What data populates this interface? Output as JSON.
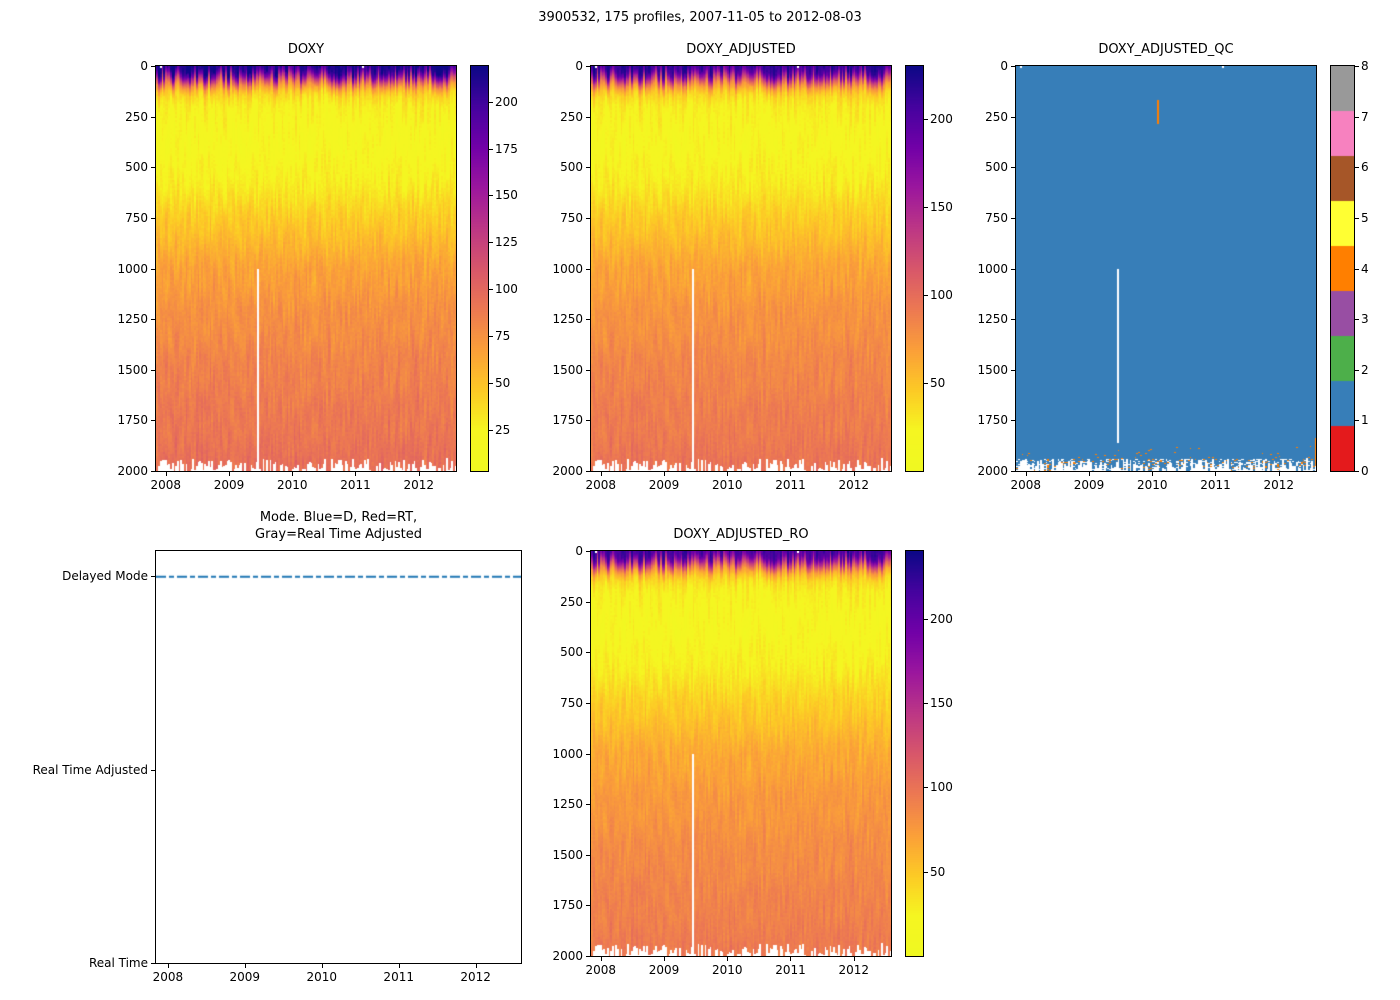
{
  "figure": {
    "title": "3900532, 175 profiles, 2007-11-05 to 2012-08-03",
    "float_id": "3900532",
    "n_profiles": 175,
    "date_start": "2007-11-05",
    "date_end": "2012-08-03",
    "background": "#ffffff",
    "text_color": "#000000"
  },
  "axes": {
    "x_tick_labels": [
      "2008",
      "2009",
      "2010",
      "2011",
      "2012"
    ],
    "x_tick_values": [
      2008,
      2009,
      2010,
      2011,
      2012
    ],
    "x_range": [
      2007.846,
      2012.589
    ],
    "depth_tick_labels": [
      "0",
      "250",
      "500",
      "750",
      "1000",
      "1250",
      "1500",
      "1750",
      "2000"
    ],
    "depth_tick_values": [
      0,
      250,
      500,
      750,
      1000,
      1250,
      1500,
      1750,
      2000
    ],
    "depth_range": [
      0,
      2000
    ]
  },
  "colormap": {
    "name": "plasma-reversed (high values dark navy, low values yellow)",
    "stops": [
      [
        13,
        8,
        135
      ],
      [
        70,
        3,
        159
      ],
      [
        114,
        1,
        168
      ],
      [
        156,
        23,
        158
      ],
      [
        189,
        55,
        134
      ],
      [
        216,
        87,
        107
      ],
      [
        237,
        121,
        83
      ],
      [
        251,
        159,
        58
      ],
      [
        253,
        202,
        38
      ],
      [
        246,
        246,
        33
      ],
      [
        240,
        249,
        33
      ]
    ]
  },
  "chart_data": [
    {
      "type": "heatmap",
      "title": "DOXY",
      "x_axis": "time (years)",
      "y_axis": "pressure (dbar), 0 at top to 2000 at bottom",
      "vmin": 3,
      "vmax": 219,
      "colorbar_ticks": [
        25,
        50,
        75,
        100,
        125,
        150,
        175,
        200
      ],
      "depth_profile_points": [
        [
          0,
          216
        ],
        [
          25,
          207
        ],
        [
          50,
          168
        ],
        [
          75,
          118
        ],
        [
          100,
          74
        ],
        [
          140,
          42
        ],
        [
          200,
          27
        ],
        [
          300,
          21
        ],
        [
          420,
          20
        ],
        [
          550,
          26
        ],
        [
          700,
          40
        ],
        [
          850,
          54
        ],
        [
          1000,
          66
        ],
        [
          1200,
          75
        ],
        [
          1500,
          84
        ],
        [
          1800,
          91
        ],
        [
          2000,
          96
        ]
      ],
      "gap_time": 2009.45,
      "gap_below_depth": 1000,
      "note": "oxygen ~210 at surface, minimum ~20 at 300-500 dbar, rising to ~95 near 2000 dbar; ragged white data bottom near 2000 dbar"
    },
    {
      "type": "heatmap",
      "title": "DOXY_ADJUSTED",
      "x_axis": "time (years)",
      "y_axis": "pressure (dbar), 0 at top to 2000 at bottom",
      "vmin": 0,
      "vmax": 230,
      "colorbar_ticks": [
        50,
        100,
        150,
        200
      ],
      "depth_profile_points": [
        [
          0,
          216
        ],
        [
          25,
          207
        ],
        [
          50,
          168
        ],
        [
          75,
          118
        ],
        [
          100,
          74
        ],
        [
          140,
          42
        ],
        [
          200,
          27
        ],
        [
          300,
          21
        ],
        [
          420,
          20
        ],
        [
          550,
          26
        ],
        [
          700,
          40
        ],
        [
          850,
          54
        ],
        [
          1000,
          66
        ],
        [
          1200,
          75
        ],
        [
          1500,
          84
        ],
        [
          1800,
          91
        ],
        [
          2000,
          96
        ]
      ],
      "gap_time": 2009.45,
      "gap_below_depth": 1000,
      "note": "same field as DOXY after adjustment"
    },
    {
      "type": "heatmap",
      "title": "DOXY_ADJUSTED_QC",
      "categorical": true,
      "dominant_value": 1,
      "value_range": [
        0,
        8
      ],
      "colorbar_ticks": [
        0,
        1,
        2,
        3,
        4,
        5,
        6,
        7,
        8
      ],
      "palette": [
        "#e41a1c",
        "#377eb8",
        "#4daf4a",
        "#984ea3",
        "#ff7f00",
        "#ffff33",
        "#a65628",
        "#f781bf",
        "#999999"
      ],
      "gap_time": 2009.45,
      "gap_below_depth": 1000,
      "gap_end_depth": 1862,
      "anomalies": [
        {
          "qc_value": 4,
          "time": 2010.08,
          "depth_range": [
            168,
            288
          ]
        },
        {
          "qc_value": 4,
          "time": 2012.58,
          "depth_range": [
            1835,
            2000
          ]
        },
        {
          "qc_value": 4,
          "description": "scattered QC=4 specks in ragged bottom band 1945-2000 dbar"
        }
      ],
      "note": "field almost entirely QC flag 1 (blue)"
    },
    {
      "type": "line",
      "title": "Mode. Blue=D, Red=RT,\nGray=Real Time Adjusted",
      "y_categories": [
        {
          "label": "Delayed Mode",
          "value": 2
        },
        {
          "label": "Real Time Adjusted",
          "value": 1
        },
        {
          "label": "Real Time",
          "value": 0
        }
      ],
      "ylim": [
        0,
        2.13
      ],
      "series": [
        {
          "name": "mode",
          "color": "#1f77b4",
          "line_style": "dashed",
          "constant_value": 2,
          "note": "all 175 profiles are Delayed Mode"
        }
      ]
    },
    {
      "type": "heatmap",
      "title": "DOXY_ADJUSTED_RO",
      "x_axis": "time (years)",
      "y_axis": "pressure (dbar), 0 at top to 2000 at bottom",
      "vmin": 0,
      "vmax": 240,
      "colorbar_ticks": [
        50,
        100,
        150,
        200
      ],
      "depth_profile_points": [
        [
          0,
          216
        ],
        [
          25,
          207
        ],
        [
          50,
          168
        ],
        [
          75,
          118
        ],
        [
          100,
          74
        ],
        [
          140,
          42
        ],
        [
          200,
          27
        ],
        [
          300,
          21
        ],
        [
          420,
          20
        ],
        [
          550,
          26
        ],
        [
          700,
          40
        ],
        [
          850,
          54
        ],
        [
          1000,
          66
        ],
        [
          1200,
          75
        ],
        [
          1500,
          84
        ],
        [
          1800,
          91
        ],
        [
          2000,
          96
        ]
      ],
      "gap_time": 2009.45,
      "gap_below_depth": 1000,
      "note": "same field as DOXY_ADJUSTED (raw-observation copy)"
    }
  ]
}
